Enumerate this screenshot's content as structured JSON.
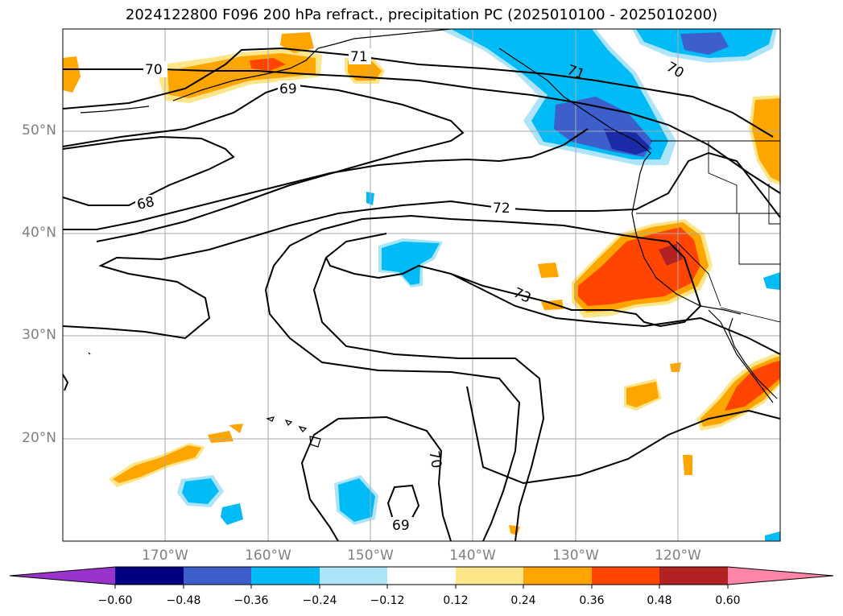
{
  "title": "2024122800 F096 200 hPa refract., precipitation PC (2025010100 - 2025010200)",
  "lat_labels": [
    "50°N",
    "40°N",
    "30°N",
    "20°N"
  ],
  "lon_labels": [
    "170°W",
    "160°W",
    "150°W",
    "140°W",
    "130°W",
    "120°W"
  ],
  "contour_labels": [
    "70",
    "71",
    "69",
    "71",
    "70",
    "68",
    "72",
    "73",
    "70",
    "69"
  ],
  "colorbar": {
    "ticks": [
      "−0.60",
      "−0.48",
      "−0.36",
      "−0.24",
      "−0.12",
      "0.12",
      "0.24",
      "0.36",
      "0.48",
      "0.60"
    ],
    "colors": [
      "#9933cc",
      "#000080",
      "#3c5fcc",
      "#00bbf5",
      "#ade4fa",
      "#ffffff",
      "#fde68a",
      "#ffa500",
      "#ff4500",
      "#b22222",
      "#ff85a8"
    ]
  },
  "shading_colors": {
    "pos_light": "#fde68a",
    "pos_mid": "#ffa500",
    "pos_high": "#ff4500",
    "pos_max": "#b22222",
    "neg_light": "#ade4fa",
    "neg_mid": "#00bbf5",
    "neg_high": "#3c5fcc"
  }
}
